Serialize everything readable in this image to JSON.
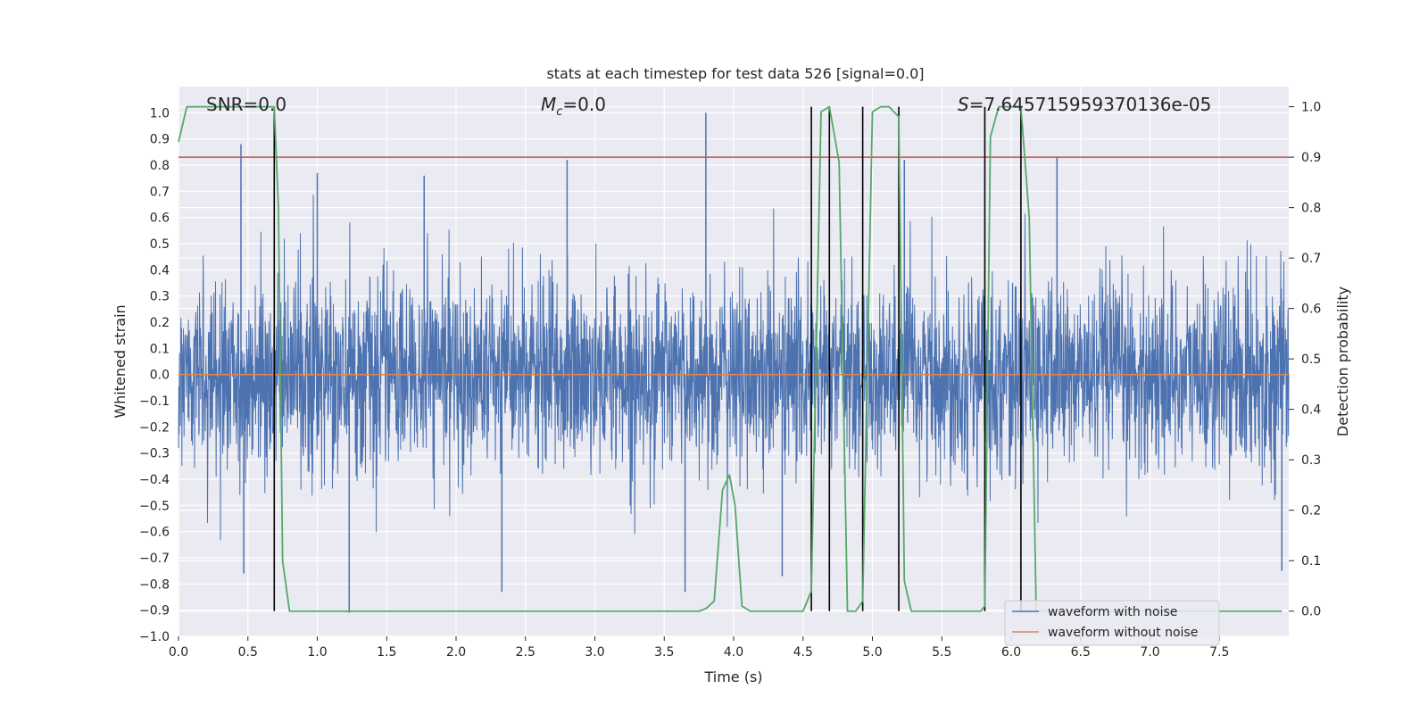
{
  "chart_data": {
    "type": "line",
    "title": "stats at each timestep for test data 526 [signal=0.0]",
    "xlabel": "Time (s)",
    "ylabel_left": "Whitened strain",
    "ylabel_right": "Detection probability",
    "xlim": [
      0.0,
      8.0
    ],
    "ylim_left": [
      -1.0,
      1.1
    ],
    "ylim_right": [
      -0.05,
      1.04
    ],
    "x_ticks": [
      0.0,
      0.5,
      1.0,
      1.5,
      2.0,
      2.5,
      3.0,
      3.5,
      4.0,
      4.5,
      5.0,
      5.5,
      6.0,
      6.5,
      7.0,
      7.5
    ],
    "x_tick_labels": [
      "0.0",
      "0.5",
      "1.0",
      "1.5",
      "2.0",
      "2.5",
      "3.0",
      "3.5",
      "4.0",
      "4.5",
      "5.0",
      "5.5",
      "6.0",
      "6.5",
      "7.0",
      "7.5"
    ],
    "y_left_ticks": [
      -1.0,
      -0.9,
      -0.8,
      -0.7,
      -0.6,
      -0.5,
      -0.4,
      -0.3,
      -0.2,
      -0.1,
      0.0,
      0.1,
      0.2,
      0.3,
      0.4,
      0.5,
      0.6,
      0.7,
      0.8,
      0.9,
      1.0
    ],
    "y_left_tick_labels": [
      "−1.0",
      "−0.9",
      "−0.8",
      "−0.7",
      "−0.6",
      "−0.5",
      "−0.4",
      "−0.3",
      "−0.2",
      "−0.1",
      "0.0",
      "0.1",
      "0.2",
      "0.3",
      "0.4",
      "0.5",
      "0.6",
      "0.7",
      "0.8",
      "0.9",
      "1.0"
    ],
    "y_right_ticks": [
      0.0,
      0.1,
      0.2,
      0.3,
      0.4,
      0.5,
      0.6,
      0.7,
      0.8,
      0.9,
      1.0
    ],
    "y_right_tick_labels": [
      "0.0",
      "0.1",
      "0.2",
      "0.3",
      "0.4",
      "0.5",
      "0.6",
      "0.7",
      "0.8",
      "0.9",
      "1.0"
    ],
    "annotations": {
      "snr": "SNR=0.0",
      "mc_symbol": "M",
      "mc_sub": "c",
      "mc_value": "=0.0",
      "s_symbol": "S",
      "s_value": "=7.645715959370136e-05"
    },
    "threshold": {
      "value": 0.9,
      "axis": "right",
      "color": "#c44e52"
    },
    "detection_markers_x": [
      0.69,
      4.56,
      4.69,
      4.93,
      5.19,
      5.81,
      6.07
    ],
    "series": [
      {
        "name": "waveform with noise",
        "axis": "left",
        "color": "#4c72b0",
        "kind": "noise",
        "typical_amplitude": 0.4,
        "peak_spikes": [
          {
            "x": 0.45,
            "y": 0.88
          },
          {
            "x": 1.0,
            "y": 0.77
          },
          {
            "x": 1.77,
            "y": 0.76
          },
          {
            "x": 2.8,
            "y": 0.82
          },
          {
            "x": 3.8,
            "y": 1.0
          },
          {
            "x": 5.23,
            "y": 0.82
          },
          {
            "x": 6.33,
            "y": 0.83
          },
          {
            "x": 1.23,
            "y": -0.91
          },
          {
            "x": 2.33,
            "y": -0.83
          },
          {
            "x": 3.65,
            "y": -0.83
          },
          {
            "x": 4.35,
            "y": -0.77
          },
          {
            "x": 0.47,
            "y": -0.76
          },
          {
            "x": 7.95,
            "y": -0.75
          }
        ]
      },
      {
        "name": "waveform without noise",
        "axis": "left",
        "color": "#dd8452",
        "x": [
          0.0,
          8.0
        ],
        "y": [
          0.0,
          0.0
        ]
      },
      {
        "name": "",
        "axis": "right",
        "color": "#55a868",
        "x": [
          0.0,
          0.06,
          0.69,
          0.72,
          0.75,
          0.8,
          3.75,
          3.8,
          3.86,
          3.92,
          3.97,
          4.01,
          4.06,
          4.12,
          4.5,
          4.56,
          4.63,
          4.69,
          4.76,
          4.82,
          4.88,
          4.93,
          5.0,
          5.06,
          5.12,
          5.19,
          5.23,
          5.28,
          5.78,
          5.81,
          5.85,
          5.91,
          5.96,
          6.07,
          6.13,
          6.18,
          7.95
        ],
        "y": [
          0.93,
          1.0,
          1.0,
          0.8,
          0.1,
          0.0,
          0.0,
          0.005,
          0.02,
          0.24,
          0.27,
          0.21,
          0.01,
          0.0,
          0.0,
          0.04,
          0.99,
          1.0,
          0.89,
          0.0,
          0.0,
          0.02,
          0.99,
          1.0,
          1.0,
          0.98,
          0.06,
          0.0,
          0.0,
          0.01,
          0.94,
          1.0,
          1.0,
          1.0,
          0.78,
          0.0,
          0.0
        ]
      }
    ],
    "legend": {
      "placement": "lower-right",
      "entries": [
        "waveform with noise",
        "waveform without noise"
      ]
    },
    "grid": true,
    "background": "#eaeaf2"
  }
}
